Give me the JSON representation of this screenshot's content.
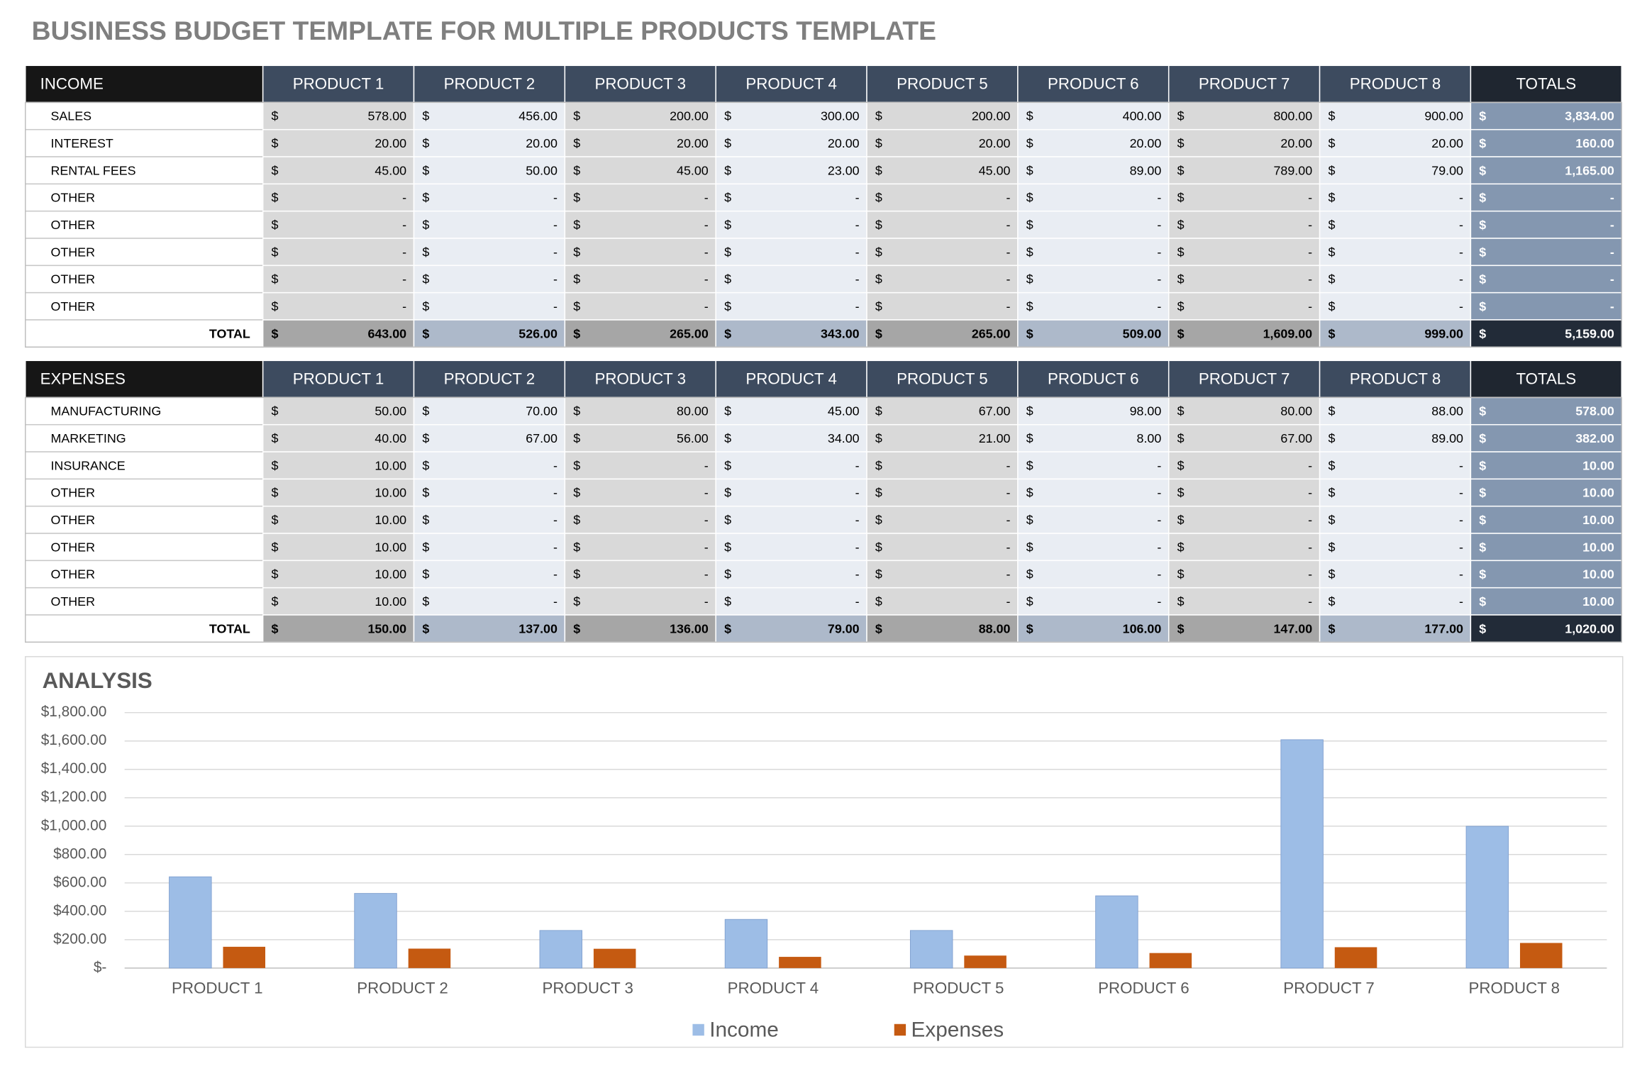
{
  "title": "BUSINESS BUDGET TEMPLATE FOR MULTIPLE PRODUCTS TEMPLATE",
  "currency_symbol": "$",
  "income": {
    "header": [
      "INCOME",
      "PRODUCT 1",
      "PRODUCT 2",
      "PRODUCT 3",
      "PRODUCT 4",
      "PRODUCT 5",
      "PRODUCT 6",
      "PRODUCT 7",
      "PRODUCT 8",
      "TOTALS"
    ],
    "rows": [
      {
        "label": "SALES",
        "cells": [
          "578.00",
          "456.00",
          "200.00",
          "300.00",
          "200.00",
          "400.00",
          "800.00",
          "900.00",
          "3,834.00"
        ]
      },
      {
        "label": "INTEREST",
        "cells": [
          "20.00",
          "20.00",
          "20.00",
          "20.00",
          "20.00",
          "20.00",
          "20.00",
          "20.00",
          "160.00"
        ]
      },
      {
        "label": "RENTAL FEES",
        "cells": [
          "45.00",
          "50.00",
          "45.00",
          "23.00",
          "45.00",
          "89.00",
          "789.00",
          "79.00",
          "1,165.00"
        ]
      },
      {
        "label": "OTHER",
        "cells": [
          "-",
          "-",
          "-",
          "-",
          "-",
          "-",
          "-",
          "-",
          "-"
        ]
      },
      {
        "label": "OTHER",
        "cells": [
          "-",
          "-",
          "-",
          "-",
          "-",
          "-",
          "-",
          "-",
          "-"
        ]
      },
      {
        "label": "OTHER",
        "cells": [
          "-",
          "-",
          "-",
          "-",
          "-",
          "-",
          "-",
          "-",
          "-"
        ]
      },
      {
        "label": "OTHER",
        "cells": [
          "-",
          "-",
          "-",
          "-",
          "-",
          "-",
          "-",
          "-",
          "-"
        ]
      },
      {
        "label": "OTHER",
        "cells": [
          "-",
          "-",
          "-",
          "-",
          "-",
          "-",
          "-",
          "-",
          "-"
        ]
      }
    ],
    "total": {
      "label": "TOTAL",
      "cells": [
        "643.00",
        "526.00",
        "265.00",
        "343.00",
        "265.00",
        "509.00",
        "1,609.00",
        "999.00",
        "5,159.00"
      ]
    }
  },
  "expenses": {
    "header": [
      "EXPENSES",
      "PRODUCT 1",
      "PRODUCT 2",
      "PRODUCT 3",
      "PRODUCT 4",
      "PRODUCT 5",
      "PRODUCT 6",
      "PRODUCT 7",
      "PRODUCT 8",
      "TOTALS"
    ],
    "rows": [
      {
        "label": "MANUFACTURING",
        "cells": [
          "50.00",
          "70.00",
          "80.00",
          "45.00",
          "67.00",
          "98.00",
          "80.00",
          "88.00",
          "578.00"
        ]
      },
      {
        "label": "MARKETING",
        "cells": [
          "40.00",
          "67.00",
          "56.00",
          "34.00",
          "21.00",
          "8.00",
          "67.00",
          "89.00",
          "382.00"
        ]
      },
      {
        "label": "INSURANCE",
        "cells": [
          "10.00",
          "-",
          "-",
          "-",
          "-",
          "-",
          "-",
          "-",
          "10.00"
        ]
      },
      {
        "label": "OTHER",
        "cells": [
          "10.00",
          "-",
          "-",
          "-",
          "-",
          "-",
          "-",
          "-",
          "10.00"
        ]
      },
      {
        "label": "OTHER",
        "cells": [
          "10.00",
          "-",
          "-",
          "-",
          "-",
          "-",
          "-",
          "-",
          "10.00"
        ]
      },
      {
        "label": "OTHER",
        "cells": [
          "10.00",
          "-",
          "-",
          "-",
          "-",
          "-",
          "-",
          "-",
          "10.00"
        ]
      },
      {
        "label": "OTHER",
        "cells": [
          "10.00",
          "-",
          "-",
          "-",
          "-",
          "-",
          "-",
          "-",
          "10.00"
        ]
      },
      {
        "label": "OTHER",
        "cells": [
          "10.00",
          "-",
          "-",
          "-",
          "-",
          "-",
          "-",
          "-",
          "10.00"
        ]
      }
    ],
    "total": {
      "label": "TOTAL",
      "cells": [
        "150.00",
        "137.00",
        "136.00",
        "79.00",
        "88.00",
        "106.00",
        "147.00",
        "177.00",
        "1,020.00"
      ]
    }
  },
  "chart_data": {
    "type": "bar",
    "title": "ANALYSIS",
    "categories": [
      "PRODUCT 1",
      "PRODUCT 2",
      "PRODUCT 3",
      "PRODUCT 4",
      "PRODUCT 5",
      "PRODUCT 6",
      "PRODUCT 7",
      "PRODUCT 8"
    ],
    "series": [
      {
        "name": "Income",
        "color": "#9dbde6",
        "values": [
          643,
          526,
          265,
          343,
          265,
          509,
          1609,
          999
        ]
      },
      {
        "name": "Expenses",
        "color": "#c55a11",
        "values": [
          150,
          137,
          136,
          79,
          88,
          106,
          147,
          177
        ]
      }
    ],
    "ylim": [
      0,
      1800
    ],
    "yticks": [
      {
        "value": 0,
        "label": "$-"
      },
      {
        "value": 200,
        "label": "$200.00"
      },
      {
        "value": 400,
        "label": "$400.00"
      },
      {
        "value": 600,
        "label": "$600.00"
      },
      {
        "value": 800,
        "label": "$800.00"
      },
      {
        "value": 1000,
        "label": "$1,000.00"
      },
      {
        "value": 1200,
        "label": "$1,200.00"
      },
      {
        "value": 1400,
        "label": "$1,400.00"
      },
      {
        "value": 1600,
        "label": "$1,600.00"
      },
      {
        "value": 1800,
        "label": "$1,800.00"
      }
    ],
    "grid": true,
    "legend": "bottom"
  }
}
